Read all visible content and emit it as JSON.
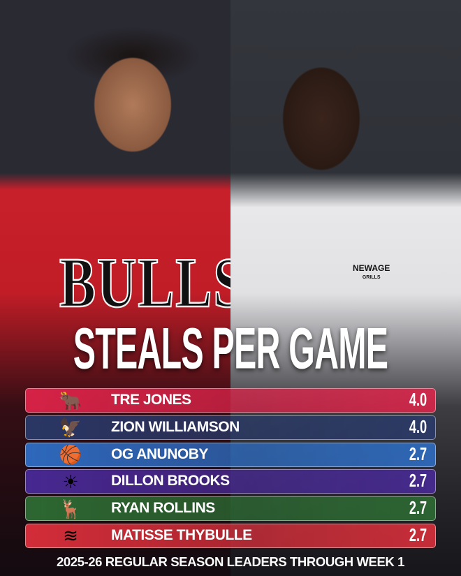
{
  "photo": {
    "left_jersey": "BULLS",
    "right_sponsor": "NEWAGE",
    "right_sponsor_sub": "GRILLS"
  },
  "title": "STEALS PER GAME",
  "leaders": [
    {
      "name": "TRE JONES",
      "value": "4.0",
      "team_icon": "bulls-logo-icon",
      "color": "#e0244a"
    },
    {
      "name": "ZION WILLIAMSON",
      "value": "4.0",
      "team_icon": "pelicans-logo-icon",
      "color": "#2a3a6a"
    },
    {
      "name": "OG ANUNOBY",
      "value": "2.7",
      "team_icon": "knicks-logo-icon",
      "color": "#2e6fc8"
    },
    {
      "name": "DILLON BROOKS",
      "value": "2.7",
      "team_icon": "suns-logo-icon",
      "color": "#4a2a9a"
    },
    {
      "name": "RYAN ROLLINS",
      "value": "2.7",
      "team_icon": "bucks-logo-icon",
      "color": "#2e6e34"
    },
    {
      "name": "MATISSE THYBULLE",
      "value": "2.7",
      "team_icon": "blazers-logo-icon",
      "color": "#e0303c"
    }
  ],
  "footer": "2025-26 REGULAR SEASON LEADERS THROUGH WEEK 1"
}
